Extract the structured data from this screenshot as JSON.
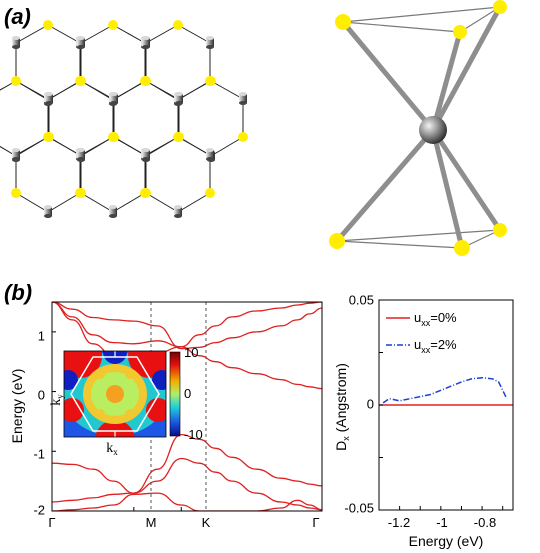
{
  "panel_labels": {
    "a": "(a)",
    "b": "(b)"
  },
  "band_plot": {
    "ylabel": "Energy (eV)",
    "y_ticks": [
      "1",
      "0",
      "-1",
      "-2"
    ],
    "x_ticks": [
      "Γ",
      "M",
      "K",
      "Γ"
    ],
    "inset": {
      "xlabel": "k",
      "xlabel_sub": "x",
      "ylabel": "k",
      "ylabel_sub": "y",
      "colorbar_ticks": [
        "10",
        "0",
        "-10"
      ]
    }
  },
  "dipole_plot": {
    "xlabel": "Energy (eV)",
    "ylabel_main": "D",
    "ylabel_sub": "x",
    "ylabel_rest": " (Angstrom)",
    "y_ticks": [
      "0.05",
      "0",
      "-0.05"
    ],
    "x_ticks": [
      "-1.2",
      "-1",
      "-0.8"
    ],
    "legend": [
      {
        "prefix": "u",
        "sub": "xx",
        "suffix": "=0%",
        "color": "#e02020",
        "dash": "solid"
      },
      {
        "prefix": "u",
        "sub": "xx",
        "suffix": "=2%",
        "color": "#1a3fd6",
        "dash": "dashdot"
      }
    ]
  },
  "chart_data": [
    {
      "type": "line",
      "title": "",
      "xlabel": "",
      "ylabel": "Energy (eV)",
      "ylim": [
        -2,
        1.5
      ],
      "x_ticks": [
        "Γ",
        "M",
        "K",
        "Γ"
      ],
      "x_tick_positions": [
        0,
        1,
        1.58,
        3.3
      ],
      "series": [
        {
          "x": [
            0,
            0.25,
            0.5,
            0.75,
            1.0,
            1.29,
            1.58,
            1.8,
            2.0,
            2.2,
            2.5,
            2.8,
            3.0,
            3.15,
            3.3
          ],
          "values": [
            1.5,
            1.2,
            0.8,
            0.6,
            0.55,
            0.65,
            0.75,
            0.95,
            1.1,
            1.25,
            1.35,
            1.4,
            1.45,
            1.48,
            1.5
          ]
        },
        {
          "x": [
            0,
            0.25,
            0.5,
            0.75,
            1.0,
            1.29,
            1.58,
            1.8,
            2.0,
            2.2,
            2.5,
            2.8,
            3.0,
            3.15,
            3.3
          ],
          "values": [
            1.5,
            1.25,
            0.95,
            0.82,
            0.8,
            0.85,
            0.75,
            0.6,
            0.5,
            0.4,
            0.3,
            0.2,
            0.12,
            0.08,
            0.05
          ]
        },
        {
          "x": [
            0,
            0.25,
            0.5,
            0.75,
            1.0,
            1.29,
            1.58,
            1.8,
            2.0,
            2.2,
            2.5,
            2.8,
            3.0,
            3.15,
            3.3
          ],
          "values": [
            1.5,
            1.38,
            1.24,
            1.2,
            1.18,
            1.1,
            0.72,
            0.74,
            0.82,
            0.9,
            1.0,
            1.1,
            1.2,
            1.3,
            1.4
          ]
        },
        {
          "x": [
            0,
            0.25,
            0.5,
            0.75,
            1.0,
            1.29,
            1.58,
            1.8,
            2.0,
            2.2,
            2.5,
            2.8,
            3.0,
            3.15,
            3.3
          ],
          "values": [
            -1.2,
            -1.22,
            -1.3,
            -1.5,
            -1.7,
            -1.3,
            -0.72,
            -0.8,
            -0.95,
            -1.1,
            -1.3,
            -1.45,
            -1.5,
            -1.55,
            -1.58
          ]
        },
        {
          "x": [
            0,
            0.25,
            0.5,
            0.75,
            1.0,
            1.29,
            1.58,
            1.8,
            2.0,
            2.2,
            2.5,
            2.8,
            3.0,
            3.15,
            3.3
          ],
          "values": [
            -1.85,
            -1.82,
            -1.78,
            -1.72,
            -1.7,
            -1.5,
            -1.12,
            -1.2,
            -1.35,
            -1.5,
            -1.7,
            -1.85,
            -1.9,
            -1.95,
            -1.98
          ]
        },
        {
          "x": [
            0,
            0.25,
            0.5,
            0.75,
            1.0,
            1.29,
            1.58,
            1.8,
            2.0,
            2.2,
            2.5,
            2.8,
            3.0,
            3.15,
            3.3
          ],
          "values": [
            -2.0,
            -1.98,
            -1.95,
            -1.9,
            -1.72,
            -1.7,
            -1.9,
            -2.0,
            -2.0,
            -2.0,
            -2.0,
            -1.95,
            -1.82,
            -1.9,
            -1.98
          ]
        }
      ]
    },
    {
      "type": "line",
      "title": "",
      "xlabel": "Energy (eV)",
      "ylabel": "Dx (Angstrom)",
      "xlim": [
        -1.3,
        -0.65
      ],
      "ylim": [
        -0.05,
        0.05
      ],
      "series": [
        {
          "name": "uxx=0%",
          "x": [
            -1.3,
            -1.2,
            -1.1,
            -1.0,
            -0.9,
            -0.8,
            -0.7,
            -0.65
          ],
          "values": [
            0,
            0,
            0,
            0,
            0,
            0,
            0,
            0
          ]
        },
        {
          "name": "uxx=2%",
          "x": [
            -1.28,
            -1.25,
            -1.2,
            -1.15,
            -1.1,
            -1.05,
            -1.0,
            -0.95,
            -0.9,
            -0.85,
            -0.8,
            -0.75,
            -0.72,
            -0.7,
            -0.68
          ],
          "values": [
            0.001,
            0.003,
            0.002,
            0.003,
            0.004,
            0.005,
            0.007,
            0.009,
            0.011,
            0.0125,
            0.013,
            0.0125,
            0.011,
            0.007,
            0.003
          ]
        }
      ]
    }
  ]
}
